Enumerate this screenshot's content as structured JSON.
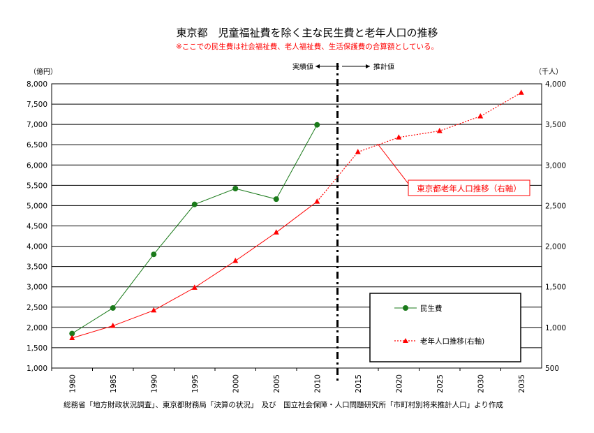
{
  "title": "東京都　児童福祉費を除く主な民生費と老年人口の推移",
  "subtitle": "※ここでの民生費は社会福祉費、老人福祉費、生活保護費の合算額としている。",
  "y_left_unit": "（億円）",
  "y_right_unit": "（千人）",
  "phase_labels": {
    "actual": "実績値",
    "projected": "推計値"
  },
  "callout": "東京都老年人口推移（右軸）",
  "source": "総務省「地方財政状況調査」、東京都財務局「決算の状況」　及び　国立社会保障・人口問題研究所「市町村別将来推計人口」より作成",
  "colors": {
    "welfare": "#1a7a1a",
    "elderly": "#ff0000",
    "grid": "#000000"
  },
  "chart_data": {
    "type": "line",
    "categories": [
      "1980",
      "1985",
      "1990",
      "1995",
      "2000",
      "2005",
      "2010",
      "2015",
      "2020",
      "2025",
      "2030",
      "2035"
    ],
    "y_left": {
      "range": [
        1000,
        8000
      ],
      "ticks": [
        "1,000",
        "1,500",
        "2,000",
        "2,500",
        "3,000",
        "3,500",
        "4,000",
        "4,500",
        "5,000",
        "5,500",
        "6,000",
        "6,500",
        "7,000",
        "7,500",
        "8,000"
      ]
    },
    "y_right": {
      "range": [
        500,
        4000
      ],
      "ticks": [
        "500",
        "1,000",
        "1,500",
        "2,000",
        "2,500",
        "3,000",
        "3,500",
        "4,000"
      ]
    },
    "divider_after": "2010",
    "series": [
      {
        "name": "民生費",
        "axis": "left",
        "marker": "circle",
        "style": "solid",
        "values": [
          1850,
          2480,
          3800,
          5030,
          5420,
          5160,
          6990,
          null,
          null,
          null,
          null,
          null
        ]
      },
      {
        "name": "老年人口推移(右軸)",
        "axis": "right",
        "marker": "triangle",
        "style": "dotted-after-2010",
        "values": [
          870,
          1020,
          1210,
          1490,
          1820,
          2170,
          2550,
          3160,
          3340,
          3420,
          3600,
          3890
        ]
      }
    ],
    "grid": "horizontal",
    "legend_position": "bottom-right"
  }
}
